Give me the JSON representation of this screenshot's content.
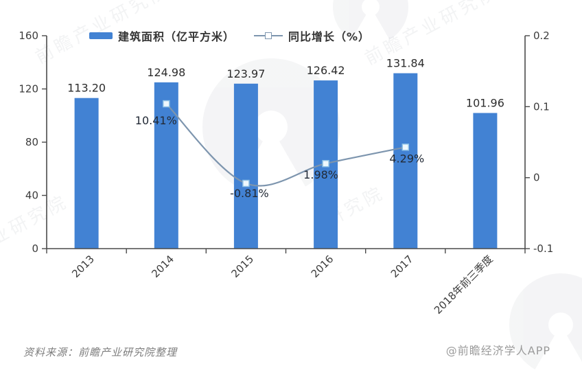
{
  "chart_data": {
    "type": "bar+line",
    "title": "",
    "categories": [
      "2013",
      "2014",
      "2015",
      "2016",
      "2017",
      "2018年前三季度"
    ],
    "series": [
      {
        "name": "建筑面积（亿平方米）",
        "type": "bar",
        "axis": "left",
        "values": [
          113.2,
          124.98,
          123.97,
          126.42,
          131.84,
          101.96
        ],
        "labels": [
          "113.20",
          "124.98",
          "123.97",
          "126.42",
          "131.84",
          "101.96"
        ],
        "color": "#4282d3"
      },
      {
        "name": "同比增长（%）",
        "type": "line",
        "axis": "right",
        "x_indices": [
          1,
          2,
          3,
          4
        ],
        "values": [
          0.1041,
          -0.0081,
          0.0198,
          0.0429
        ],
        "labels": [
          "10.41%",
          "-0.81%",
          "1.98%",
          "4.29%"
        ],
        "color": "#7d95ae",
        "marker_fill": "#eef8fd",
        "marker_stroke": "#8fc2e6",
        "label_offsets": [
          [
            -15,
            30
          ],
          [
            5,
            20
          ],
          [
            -7,
            22
          ],
          [
            2,
            22
          ]
        ],
        "smooth": true
      }
    ],
    "left_axis": {
      "min": 0,
      "max": 160,
      "ticks": [
        0,
        40,
        80,
        120,
        160
      ],
      "tick_labels": [
        "0",
        "40",
        "80",
        "120",
        "160"
      ]
    },
    "right_axis": {
      "min": -0.1,
      "max": 0.2,
      "ticks": [
        -0.1,
        0,
        0.1,
        0.2
      ],
      "tick_labels": [
        "-0.1",
        "0",
        "0.1",
        "0.2"
      ]
    },
    "legend_position": "top",
    "grid": false,
    "axis_color": "#4a4a4a"
  },
  "footer": {
    "source": "资料来源：前瞻产业研究院整理",
    "credit": "@前瞻经济学人APP"
  },
  "watermarks": {
    "texts": [
      "前瞻产业研究院",
      "前瞻产业研究院",
      "研究院",
      "业研究院"
    ]
  }
}
